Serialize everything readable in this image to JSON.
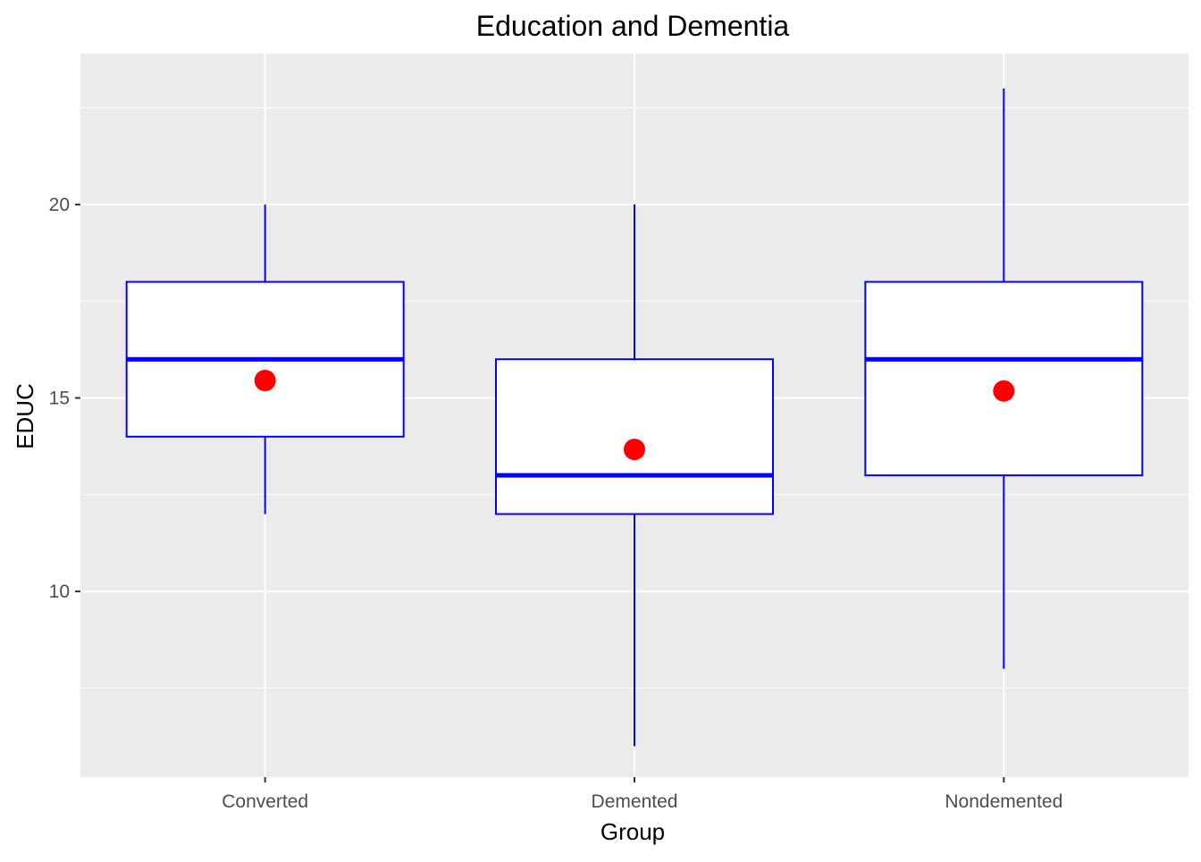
{
  "chart_data": {
    "type": "boxplot",
    "title": "Education and Dementia",
    "xlabel": "Group",
    "ylabel": "EDUC",
    "categories": [
      "Converted",
      "Demented",
      "Nondemented"
    ],
    "ylim": [
      5.2,
      23.9
    ],
    "y_ticks": [
      10,
      15,
      20
    ],
    "y_tick_labels": [
      "10",
      "15",
      "20"
    ],
    "boxes": [
      {
        "group": "Converted",
        "min": 12,
        "q1": 14,
        "median": 16,
        "q3": 18,
        "max": 20,
        "mean": 15.45
      },
      {
        "group": "Demented",
        "min": 6,
        "q1": 12,
        "median": 13,
        "q3": 16,
        "max": 20,
        "mean": 13.67
      },
      {
        "group": "Nondemented",
        "min": 8,
        "q1": 13,
        "median": 16,
        "q3": 18,
        "max": 23,
        "mean": 15.18
      }
    ],
    "grid": true,
    "legend": "none",
    "colors": {
      "panel_background": "#ebebeb",
      "grid": "#ffffff",
      "box_outline": "#0000ff",
      "box_fill": "#ffffff",
      "mean_point": "#ff0000",
      "tick_mark": "#333333"
    }
  }
}
